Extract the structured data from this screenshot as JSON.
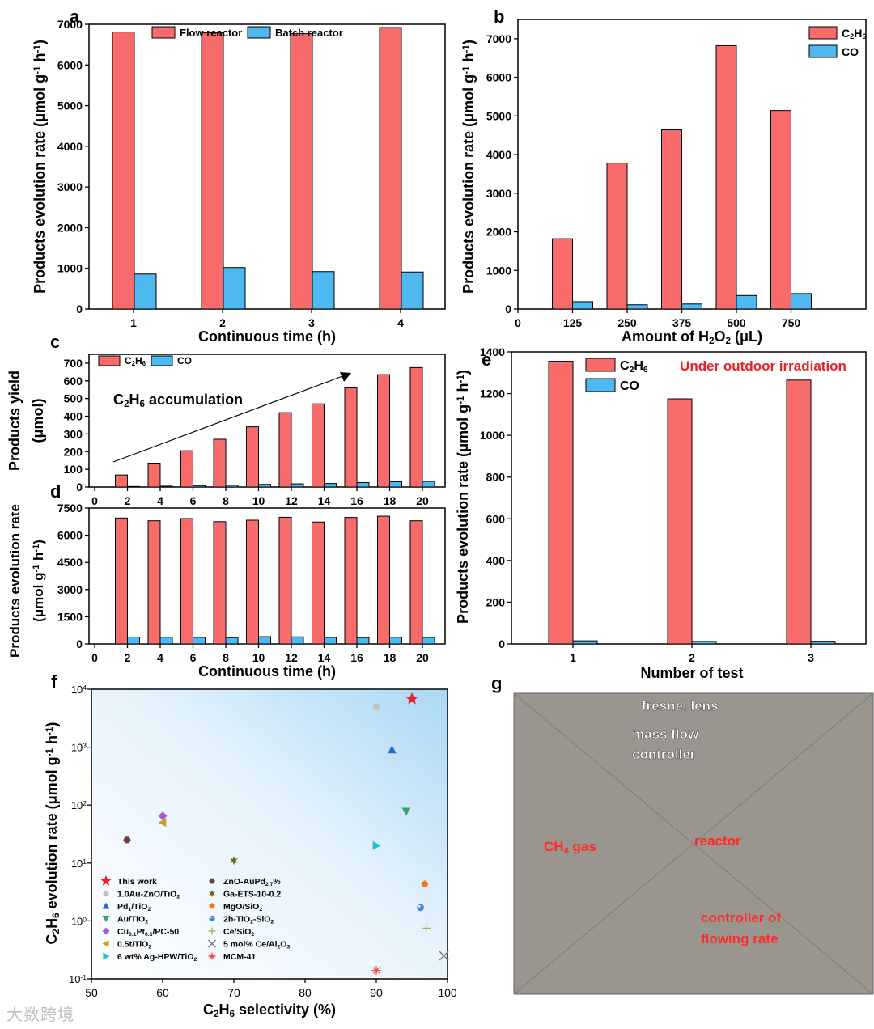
{
  "colors": {
    "red": "#f76b6b",
    "blue": "#4eb8f0",
    "arrow": "#000000"
  },
  "chart_data": [
    {
      "panel": "a",
      "type": "bar",
      "categories": [
        "1",
        "2",
        "3",
        "4"
      ],
      "series": [
        {
          "name": "Flow reactor",
          "values": [
            6810,
            6790,
            6770,
            6920
          ]
        },
        {
          "name": "Batch reactor",
          "values": [
            860,
            1020,
            920,
            910
          ]
        }
      ],
      "xlabel": "Continuous time (h)",
      "ylabel": "Products evolution rate (μmol g⁻¹ h⁻¹)",
      "ylim": [
        0,
        7000
      ],
      "yticks": [
        0,
        1000,
        2000,
        3000,
        4000,
        5000,
        6000,
        7000
      ],
      "legend": "top"
    },
    {
      "panel": "b",
      "type": "bar",
      "categories": [
        "0",
        "125",
        "250",
        "375",
        "500",
        "750"
      ],
      "series": [
        {
          "name": "C₂H₆",
          "values": [
            null,
            1820,
            3780,
            4640,
            6820,
            5140
          ]
        },
        {
          "name": "CO",
          "values": [
            null,
            190,
            110,
            130,
            350,
            400
          ]
        }
      ],
      "xlabel": "Amount of H₂O₂ (μL)",
      "ylabel": "Products evolution rate (μmol g⁻¹ h⁻¹)",
      "ylim": [
        0,
        7500
      ],
      "yticks": [
        0,
        1000,
        2000,
        3000,
        4000,
        5000,
        6000,
        7000
      ],
      "legend": "top-right"
    },
    {
      "panel": "c",
      "type": "bar",
      "categories": [
        "0",
        "2",
        "4",
        "6",
        "8",
        "10",
        "12",
        "14",
        "16",
        "18",
        "20"
      ],
      "series": [
        {
          "name": "C₂H₆",
          "values": [
            null,
            68,
            135,
            205,
            270,
            340,
            420,
            470,
            560,
            635,
            675
          ]
        },
        {
          "name": "CO",
          "values": [
            null,
            3,
            5,
            8,
            10,
            15,
            18,
            20,
            25,
            30,
            32
          ]
        }
      ],
      "ylabel": "Products yield (μmol)",
      "ylim": [
        0,
        750
      ],
      "yticks": [
        0,
        100,
        200,
        300,
        400,
        500,
        600,
        700
      ],
      "annotation": "C₂H₆ accumulation",
      "legend": "top-left"
    },
    {
      "panel": "d",
      "type": "bar",
      "categories": [
        "0",
        "2",
        "4",
        "6",
        "8",
        "10",
        "12",
        "14",
        "16",
        "18",
        "20"
      ],
      "series": [
        {
          "name": "C₂H₆",
          "values": [
            null,
            6950,
            6800,
            6920,
            6750,
            6830,
            6990,
            6730,
            6980,
            7050,
            6800
          ]
        },
        {
          "name": "CO",
          "values": [
            null,
            380,
            370,
            360,
            350,
            400,
            390,
            360,
            350,
            370,
            360
          ]
        }
      ],
      "xlabel": "Continuous time (h)",
      "ylabel": "Products evolution rate (μmol g⁻¹ h⁻¹)",
      "ylim": [
        0,
        7500
      ],
      "yticks": [
        0,
        1500,
        3000,
        4500,
        6000,
        7500
      ]
    },
    {
      "panel": "e",
      "type": "bar",
      "categories": [
        "1",
        "2",
        "3"
      ],
      "series": [
        {
          "name": "C₂H₆",
          "values": [
            1355,
            1175,
            1265
          ]
        },
        {
          "name": "CO",
          "values": [
            15,
            12,
            13
          ]
        }
      ],
      "xlabel": "Number of test",
      "ylabel": "Products evolution rate (μmol g⁻¹ h⁻¹)",
      "ylim": [
        0,
        1400
      ],
      "yticks": [
        0,
        200,
        400,
        600,
        800,
        1000,
        1200,
        1400
      ],
      "annotation": "Under outdoor irradiation",
      "legend": "top-left"
    },
    {
      "panel": "f",
      "type": "scatter",
      "xlabel": "C₂H₆ selectivity (%)",
      "ylabel": "C₂H₆ evolution rate (μmol g⁻¹ h⁻¹)",
      "xlim": [
        50,
        100
      ],
      "xticks": [
        50,
        60,
        70,
        80,
        90,
        100
      ],
      "ylim": [
        0.1,
        10000
      ],
      "yscale": "log",
      "yticks": [
        "10⁻¹",
        "10⁰",
        "10¹",
        "10²",
        "10³",
        "10⁴"
      ],
      "points": [
        {
          "name": "This work",
          "x": 95,
          "y": 6800,
          "marker": "star",
          "color": "#e8202a"
        },
        {
          "name": "1.0Au-ZnO/TiO₂",
          "x": 90,
          "y": 5000,
          "marker": "circle",
          "color": "#c0c0c0"
        },
        {
          "name": "Pd₁/TiO₂",
          "x": 92.2,
          "y": 900,
          "marker": "triangle-up",
          "color": "#2a6fd6"
        },
        {
          "name": "Au/TiO₂",
          "x": 94.2,
          "y": 78,
          "marker": "triangle-down",
          "color": "#2fa66b"
        },
        {
          "name": "Cu₀.₁Pt₀.₅/PC-50",
          "x": 60,
          "y": 65,
          "marker": "diamond",
          "color": "#a45bd6"
        },
        {
          "name": "0.5t/TiO₂",
          "x": 60,
          "y": 50,
          "marker": "triangle-left",
          "color": "#c9a21c"
        },
        {
          "name": "6 wt% Ag-HPW/TiO₂",
          "x": 90,
          "y": 20,
          "marker": "triangle-right",
          "color": "#1cc1c9"
        },
        {
          "name": "ZnO-AuPd₂.₇%",
          "x": 55,
          "y": 25,
          "marker": "hexagon",
          "color": "#6b3f3f"
        },
        {
          "name": "Ga-ETS-10-0.2",
          "x": 70,
          "y": 11,
          "marker": "star6",
          "color": "#6b6b1f"
        },
        {
          "name": "MgO/SiO₂",
          "x": 96.8,
          "y": 4.3,
          "marker": "pentagon",
          "color": "#f07a1c"
        },
        {
          "name": "2b-TiO₂-SiO₂",
          "x": 96.2,
          "y": 1.7,
          "marker": "sphere",
          "color": "#3a8ad6"
        },
        {
          "name": "Ce/SiO₂",
          "x": 97,
          "y": 0.75,
          "marker": "plus",
          "color": "#8fbf3a"
        },
        {
          "name": "5 mol% Ce/Al₂O₃",
          "x": 99.5,
          "y": 0.25,
          "marker": "x",
          "color": "#777777"
        },
        {
          "name": "MCM-41",
          "x": 90,
          "y": 0.14,
          "marker": "asterisk",
          "color": "#e84a4a"
        }
      ],
      "legend": "bottom-left"
    }
  ],
  "photo": {
    "panel": "g",
    "labels": [
      "fresnel lens",
      "mass flow controller",
      "reactor",
      "CH₄ gas",
      "controller of flowing rate"
    ]
  },
  "watermark": "大数跨境"
}
